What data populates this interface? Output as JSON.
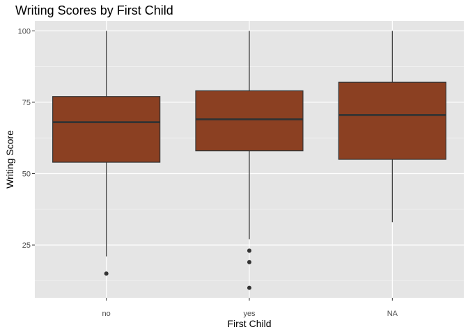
{
  "chart_data": {
    "type": "box",
    "title": "Writing Scores by First Child",
    "xlabel": "First Child",
    "ylabel": "Writing Score",
    "categories": [
      "no",
      "yes",
      "NA"
    ],
    "ylim": [
      6.5,
      103.5
    ],
    "yticks": [
      25,
      50,
      75,
      100
    ],
    "grid": true,
    "colors": {
      "box_fill": "#8B4022",
      "box_stroke": "#333333",
      "panel_bg": "#E5E5E5",
      "grid_major": "#FFFFFF",
      "outlier": "#333333"
    },
    "boxes": [
      {
        "category": "no",
        "whisker_low": 21,
        "q1": 54,
        "median": 68,
        "q3": 77,
        "whisker_high": 100,
        "outliers": [
          15
        ]
      },
      {
        "category": "yes",
        "whisker_low": 27,
        "q1": 58,
        "median": 69,
        "q3": 79,
        "whisker_high": 100,
        "outliers": [
          23,
          19,
          10
        ]
      },
      {
        "category": "NA",
        "whisker_low": 33,
        "q1": 55,
        "median": 70.5,
        "q3": 82,
        "whisker_high": 100,
        "outliers": []
      }
    ]
  }
}
